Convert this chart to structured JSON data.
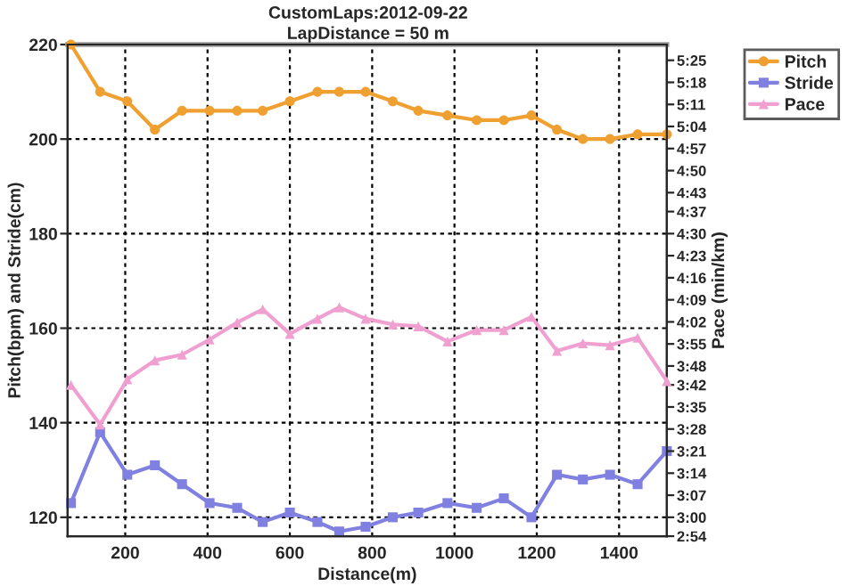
{
  "chart_data": {
    "type": "line",
    "title": "CustomLaps:2012-09-22",
    "subtitle": "LapDistance = 50 m",
    "xlabel": "Distance(m)",
    "ylabel": "Pitch(bpm) and Stride(cm)",
    "y2label": "Pace (min/km)",
    "x": [
      68,
      139,
      205,
      272,
      338,
      405,
      472,
      534,
      600,
      667,
      720,
      784,
      850,
      912,
      983,
      1054,
      1120,
      1187,
      1249,
      1312,
      1378,
      1445,
      1516
    ],
    "series": [
      {
        "name": "Pitch",
        "color": "#f0a030",
        "marker": "circle",
        "values": [
          220,
          210,
          208,
          202,
          206,
          206,
          206,
          206,
          208,
          210,
          210,
          210,
          208,
          206,
          205,
          204,
          204,
          205,
          202,
          200,
          200,
          201,
          201
        ]
      },
      {
        "name": "Stride",
        "color": "#8080e0",
        "marker": "square",
        "values": [
          123,
          138,
          129,
          131,
          127,
          123,
          122,
          119,
          121,
          119,
          117,
          118,
          120,
          121,
          123,
          122,
          124,
          120,
          129,
          128,
          129,
          127,
          134
        ]
      },
      {
        "name": "Pace",
        "color": "#f0a0d0",
        "marker": "triangle",
        "axis": "y2",
        "values": [
          3.7,
          3.49,
          3.73,
          3.83,
          3.86,
          3.94,
          4.03,
          4.1,
          3.97,
          4.05,
          4.11,
          4.05,
          4.02,
          4.01,
          3.93,
          3.99,
          3.99,
          4.06,
          3.88,
          3.92,
          3.91,
          3.95,
          3.72
        ]
      }
    ],
    "xlim": [
      60,
      1516
    ],
    "xticks": [
      200,
      400,
      600,
      800,
      1000,
      1200,
      1400
    ],
    "ylim": [
      116,
      220
    ],
    "yticks": [
      120,
      140,
      160,
      180,
      200,
      220
    ],
    "y2lim": [
      2.9,
      5.5
    ],
    "y2ticks": [
      {
        "value": 2.9,
        "label": "2:54"
      },
      {
        "value": 3.0,
        "label": "3:00"
      },
      {
        "value": 3.1167,
        "label": "3:07"
      },
      {
        "value": 3.2333,
        "label": "3:14"
      },
      {
        "value": 3.35,
        "label": "3:21"
      },
      {
        "value": 3.4667,
        "label": "3:28"
      },
      {
        "value": 3.5833,
        "label": "3:35"
      },
      {
        "value": 3.7,
        "label": "3:42"
      },
      {
        "value": 3.8,
        "label": "3:48"
      },
      {
        "value": 3.9167,
        "label": "3:55"
      },
      {
        "value": 4.0333,
        "label": "4:02"
      },
      {
        "value": 4.15,
        "label": "4:09"
      },
      {
        "value": 4.2667,
        "label": "4:16"
      },
      {
        "value": 4.3833,
        "label": "4:23"
      },
      {
        "value": 4.5,
        "label": "4:30"
      },
      {
        "value": 4.6167,
        "label": "4:37"
      },
      {
        "value": 4.7167,
        "label": "4:43"
      },
      {
        "value": 4.8333,
        "label": "4:50"
      },
      {
        "value": 4.95,
        "label": "4:57"
      },
      {
        "value": 5.0667,
        "label": "5:04"
      },
      {
        "value": 5.1833,
        "label": "5:11"
      },
      {
        "value": 5.3,
        "label": "5:18"
      },
      {
        "value": 5.4167,
        "label": "5:25"
      }
    ],
    "grid": true,
    "legend": "top right"
  }
}
